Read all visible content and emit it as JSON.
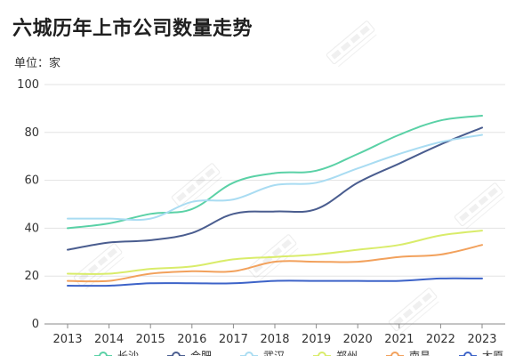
{
  "chart_title": "六城历年上市公司数量走势",
  "unit": "单位：家",
  "chart_data": {
    "type": "line",
    "title": "六城历年上市公司数量走势",
    "ylabel": "单位：家",
    "x": [
      "2013",
      "2014",
      "2015",
      "2016",
      "2017",
      "2018",
      "2019",
      "2020",
      "2021",
      "2022",
      "2023"
    ],
    "ylim": [
      0,
      100
    ],
    "yticks": [
      0,
      20,
      40,
      60,
      80,
      100
    ],
    "grid": true,
    "legend_position": "bottom",
    "series": [
      {
        "name": "长沙",
        "color": "#5ad1a6",
        "values": [
          40,
          42,
          46,
          48,
          59,
          63,
          64,
          71,
          79,
          85,
          87
        ]
      },
      {
        "name": "合肥",
        "color": "#4a5d8f",
        "values": [
          31,
          34,
          35,
          38,
          46,
          47,
          48,
          59,
          67,
          75,
          82
        ]
      },
      {
        "name": "武汉",
        "color": "#a9dcf2",
        "values": [
          44,
          44,
          44,
          51,
          52,
          58,
          59,
          65,
          71,
          76,
          79
        ]
      },
      {
        "name": "郑州",
        "color": "#d9ec6a",
        "values": [
          21,
          21,
          23,
          24,
          27,
          28,
          29,
          31,
          33,
          37,
          39
        ]
      },
      {
        "name": "南昌",
        "color": "#f2a15c",
        "values": [
          18,
          18,
          21,
          22,
          22,
          26,
          26,
          26,
          28,
          29,
          33
        ]
      },
      {
        "name": "太原",
        "color": "#3d63c8",
        "values": [
          16,
          16,
          17,
          17,
          17,
          18,
          18,
          18,
          18,
          19,
          19
        ]
      }
    ]
  }
}
